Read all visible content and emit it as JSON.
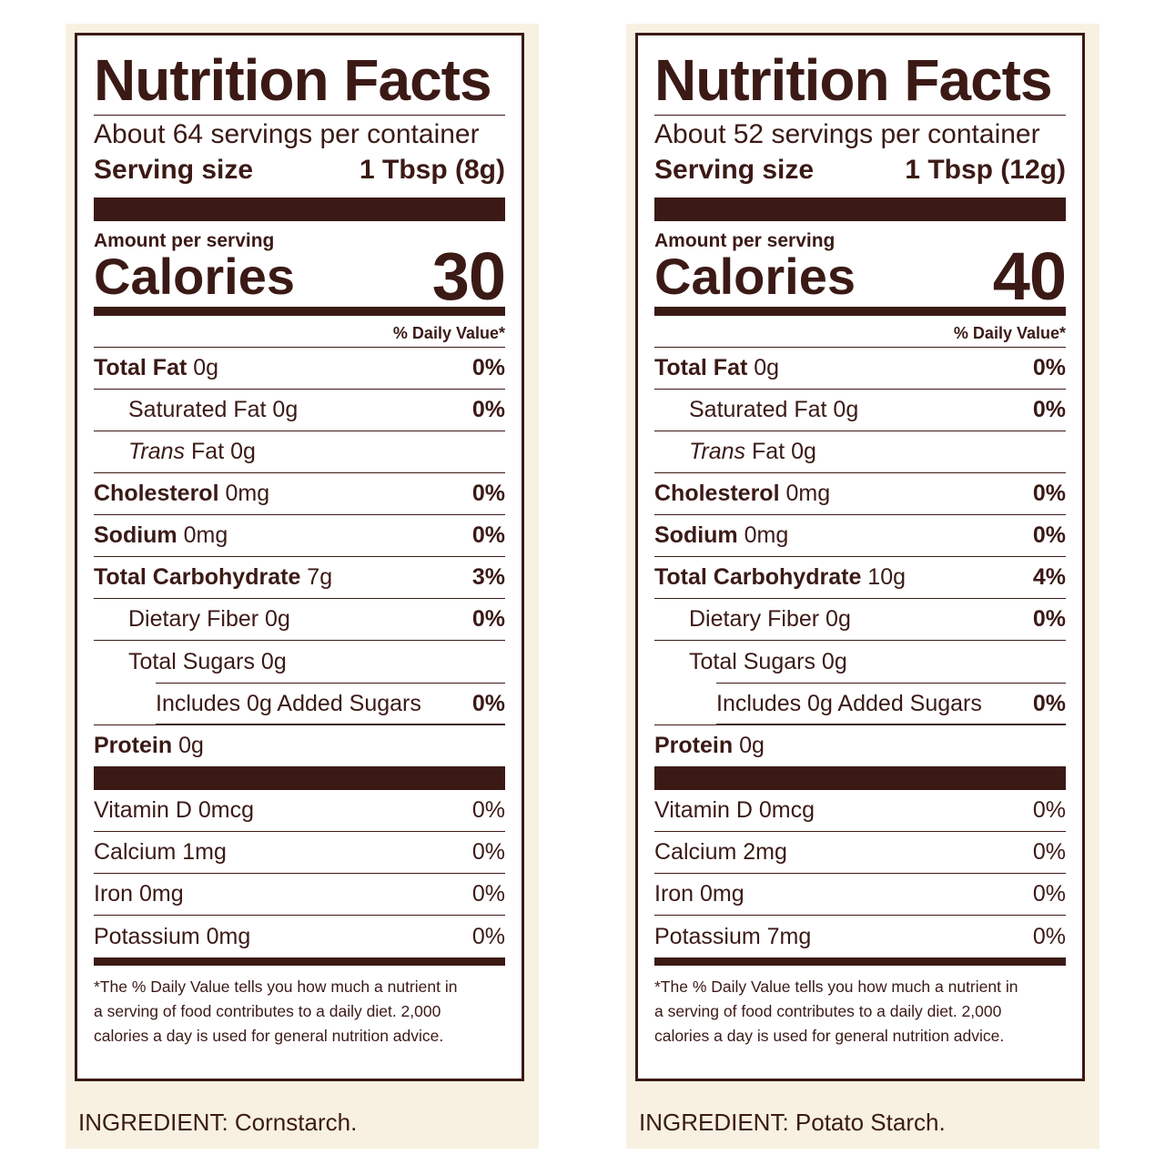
{
  "panels": [
    {
      "title": "Nutrition Facts",
      "servings_per_container": "About 64 servings per container",
      "serving_size_label": "Serving size",
      "serving_size_value": "1 Tbsp (8g)",
      "amount_per_serving": "Amount per serving",
      "calories_label": "Calories",
      "calories_value": "30",
      "daily_value_header": "% Daily Value*",
      "total_fat_label": "Total Fat",
      "total_fat_amount": "0g",
      "total_fat_dv": "0%",
      "saturated_fat_label": "Saturated Fat 0g",
      "saturated_fat_dv": "0%",
      "trans_fat_italic": "Trans",
      "trans_fat_rest": "Fat 0g",
      "cholesterol_label": "Cholesterol",
      "cholesterol_amount": "0mg",
      "cholesterol_dv": "0%",
      "sodium_label": "Sodium",
      "sodium_amount": "0mg",
      "sodium_dv": "0%",
      "carb_label": "Total Carbohydrate",
      "carb_amount": "7g",
      "carb_dv": "3%",
      "fiber_label": "Dietary Fiber 0g",
      "fiber_dv": "0%",
      "sugars_label": "Total Sugars 0g",
      "added_sugars_label": "Includes 0g Added Sugars",
      "added_sugars_dv": "0%",
      "protein_label": "Protein",
      "protein_amount": "0g",
      "vitamin_d": "Vitamin D 0mcg",
      "vitamin_d_dv": "0%",
      "calcium": "Calcium 1mg",
      "calcium_dv": "0%",
      "iron": "Iron 0mg",
      "iron_dv": "0%",
      "potassium": "Potassium 0mg",
      "potassium_dv": "0%",
      "footnote_1": "*The % Daily Value tells you how much a nutrient in",
      "footnote_2": "a serving of food contributes to a daily diet. 2,000",
      "footnote_3": "calories a day is used for general nutrition advice.",
      "ingredient": "INGREDIENT: Cornstarch."
    },
    {
      "title": "Nutrition Facts",
      "servings_per_container": "About 52 servings per container",
      "serving_size_label": "Serving size",
      "serving_size_value": "1 Tbsp (12g)",
      "amount_per_serving": "Amount per serving",
      "calories_label": "Calories",
      "calories_value": "40",
      "daily_value_header": "% Daily Value*",
      "total_fat_label": "Total Fat",
      "total_fat_amount": "0g",
      "total_fat_dv": "0%",
      "saturated_fat_label": "Saturated Fat 0g",
      "saturated_fat_dv": "0%",
      "trans_fat_italic": "Trans",
      "trans_fat_rest": "Fat 0g",
      "cholesterol_label": "Cholesterol",
      "cholesterol_amount": "0mg",
      "cholesterol_dv": "0%",
      "sodium_label": "Sodium",
      "sodium_amount": "0mg",
      "sodium_dv": "0%",
      "carb_label": "Total Carbohydrate",
      "carb_amount": "10g",
      "carb_dv": "4%",
      "fiber_label": "Dietary Fiber 0g",
      "fiber_dv": "0%",
      "sugars_label": "Total Sugars 0g",
      "added_sugars_label": "Includes 0g Added Sugars",
      "added_sugars_dv": "0%",
      "protein_label": "Protein",
      "protein_amount": "0g",
      "vitamin_d": "Vitamin D 0mcg",
      "vitamin_d_dv": "0%",
      "calcium": "Calcium 2mg",
      "calcium_dv": "0%",
      "iron": "Iron 0mg",
      "iron_dv": "0%",
      "potassium": "Potassium 7mg",
      "potassium_dv": "0%",
      "footnote_1": "*The % Daily Value tells you how much a nutrient in",
      "footnote_2": "a serving of food contributes to a daily diet. 2,000",
      "footnote_3": "calories a day is used for general nutrition advice.",
      "ingredient": "INGREDIENT: Potato Starch."
    }
  ],
  "colors": {
    "ink": "#3b1a16",
    "panel_background": "#f8f1e1",
    "label_background": "#ffffff"
  }
}
